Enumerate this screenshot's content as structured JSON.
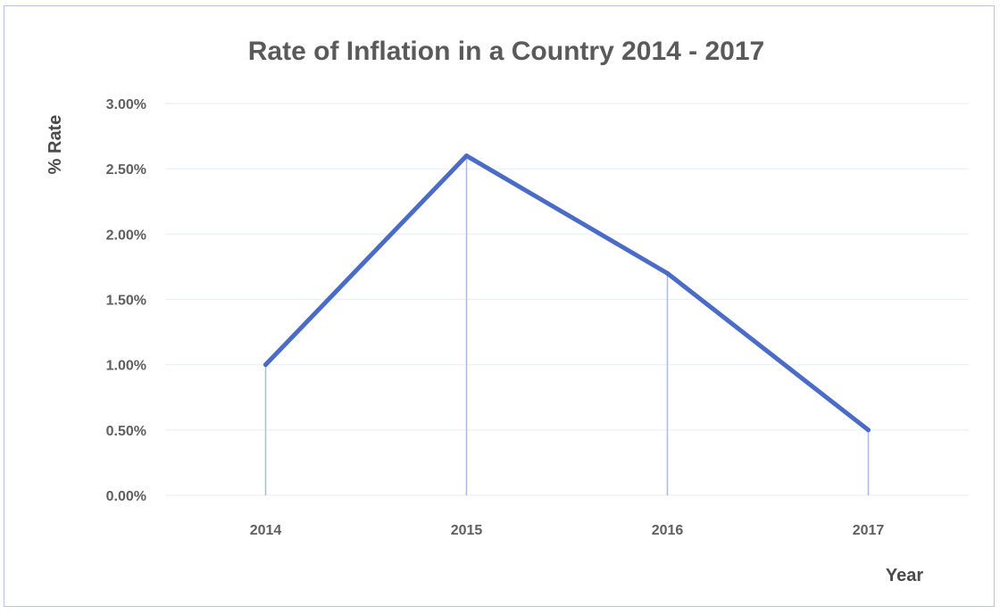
{
  "chart_data": {
    "type": "line",
    "title": "Rate of Inflation in a Country 2014 - 2017",
    "xlabel": "Year",
    "ylabel": "% Rate",
    "categories": [
      "2014",
      "2015",
      "2016",
      "2017"
    ],
    "series": [
      {
        "values": [
          1.0,
          2.6,
          1.7,
          0.5
        ]
      }
    ],
    "y_ticks": [
      "0.00%",
      "0.50%",
      "1.00%",
      "1.50%",
      "2.00%",
      "2.50%",
      "3.00%"
    ],
    "ylim": [
      0,
      3.0
    ],
    "drop_lines": true,
    "grid": true,
    "legend": "none",
    "colors": {
      "line": "#4a6cc6",
      "drop_line": "#a9bbe0",
      "grid": "#eceff4",
      "frame": "#b7c6de"
    }
  }
}
